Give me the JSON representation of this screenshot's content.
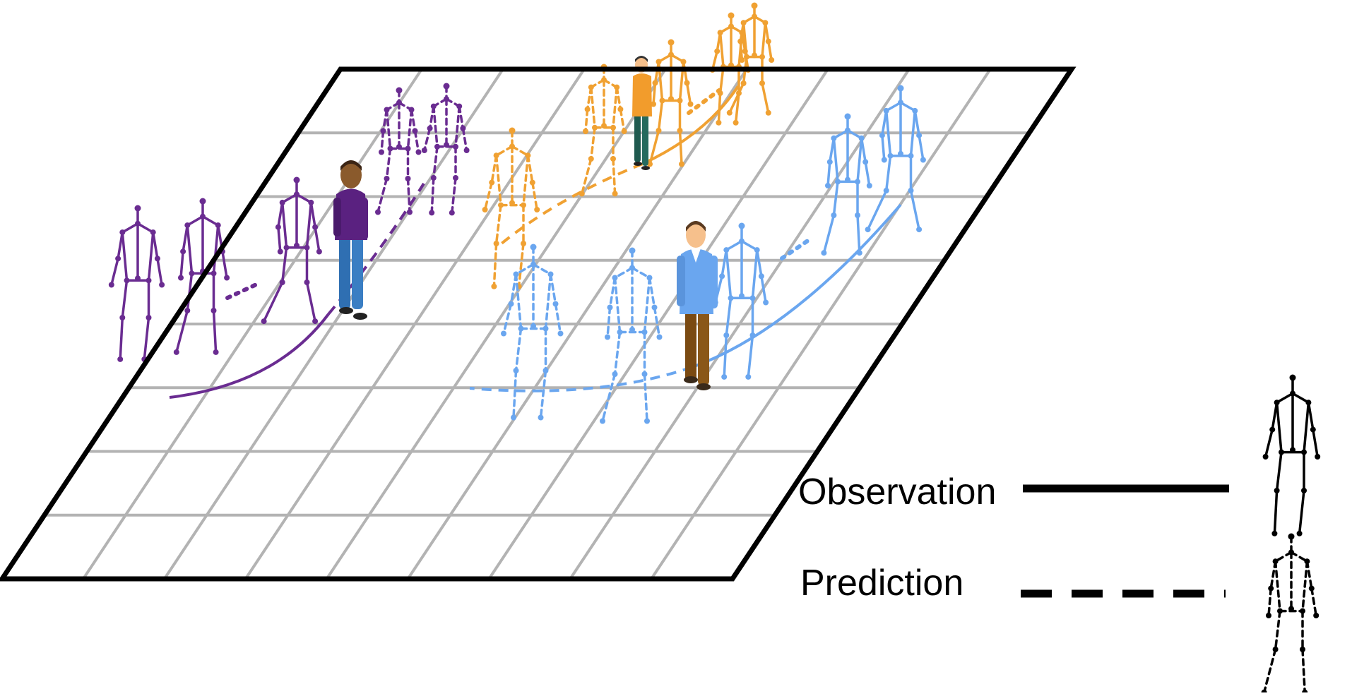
{
  "legend": {
    "observation_label": "Observation",
    "prediction_label": "Prediction"
  },
  "colors": {
    "purple": "#6a2c91",
    "orange": "#f0a132",
    "blue": "#6aa6ef",
    "grid": "#b3b3b3",
    "border": "#000000"
  },
  "groups": [
    {
      "name": "purple-person-trajectory",
      "color": "purple",
      "observed_poses": 3,
      "predicted_poses": 2
    },
    {
      "name": "orange-person-trajectory",
      "color": "orange",
      "observed_poses": 3,
      "predicted_poses": 2
    },
    {
      "name": "blue-person-trajectory",
      "color": "blue",
      "observed_poses": 3,
      "predicted_poses": 2
    }
  ]
}
